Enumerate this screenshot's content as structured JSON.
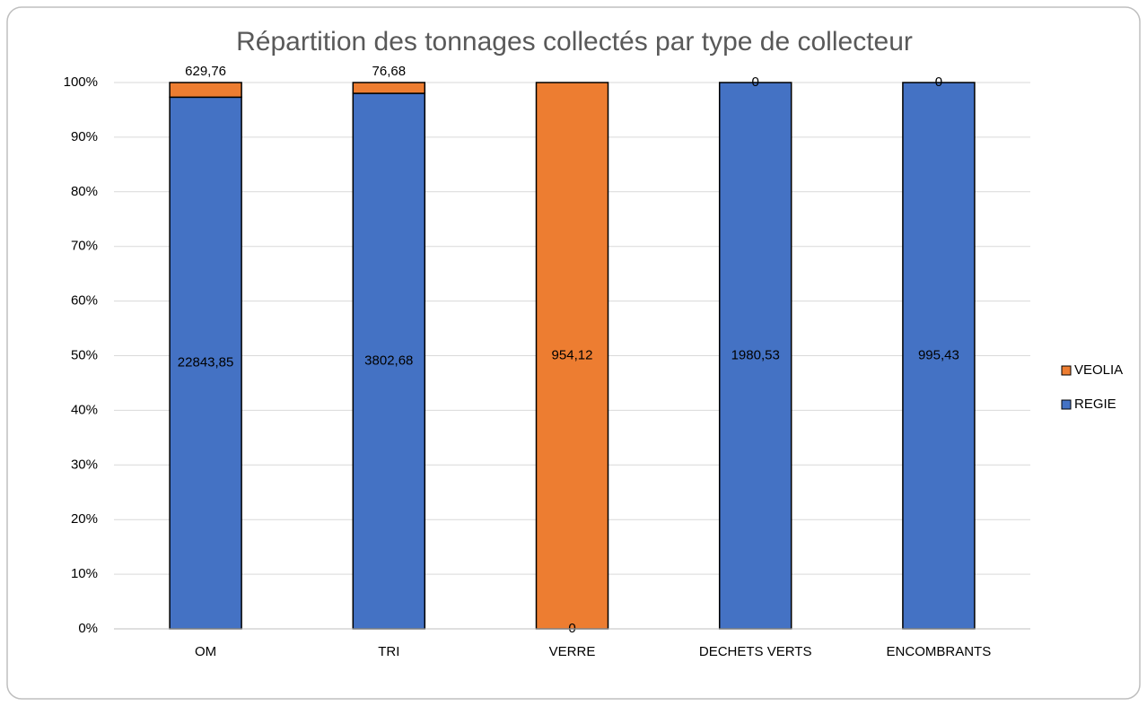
{
  "chart_data": {
    "type": "bar",
    "stacked": "percent",
    "title": "Répartition des tonnages collectés par type de collecteur",
    "categories": [
      "OM",
      "TRI",
      "VERRE",
      "DECHETS VERTS",
      "ENCOMBRANTS"
    ],
    "series": [
      {
        "name": "REGIE",
        "color": "#4472c4",
        "values": [
          22843.85,
          3802.68,
          0,
          1980.53,
          995.43
        ],
        "value_labels": [
          "22843,85",
          "3802,68",
          "0",
          "1980,53",
          "995,43"
        ]
      },
      {
        "name": "VEOLIA",
        "color": "#ed7d31",
        "values": [
          629.76,
          76.68,
          954.12,
          0,
          0
        ],
        "value_labels": [
          "629,76",
          "76,68",
          "954,12",
          "0",
          "0"
        ]
      }
    ],
    "ylim": [
      0,
      100
    ],
    "yticks": [
      {
        "value": 0,
        "label": "0%"
      },
      {
        "value": 10,
        "label": "10%"
      },
      {
        "value": 20,
        "label": "20%"
      },
      {
        "value": 30,
        "label": "30%"
      },
      {
        "value": 40,
        "label": "40%"
      },
      {
        "value": 50,
        "label": "50%"
      },
      {
        "value": 60,
        "label": "60%"
      },
      {
        "value": 70,
        "label": "70%"
      },
      {
        "value": 80,
        "label": "80%"
      },
      {
        "value": 90,
        "label": "90%"
      },
      {
        "value": 100,
        "label": "100%"
      }
    ],
    "grid": true,
    "legend": "right"
  }
}
